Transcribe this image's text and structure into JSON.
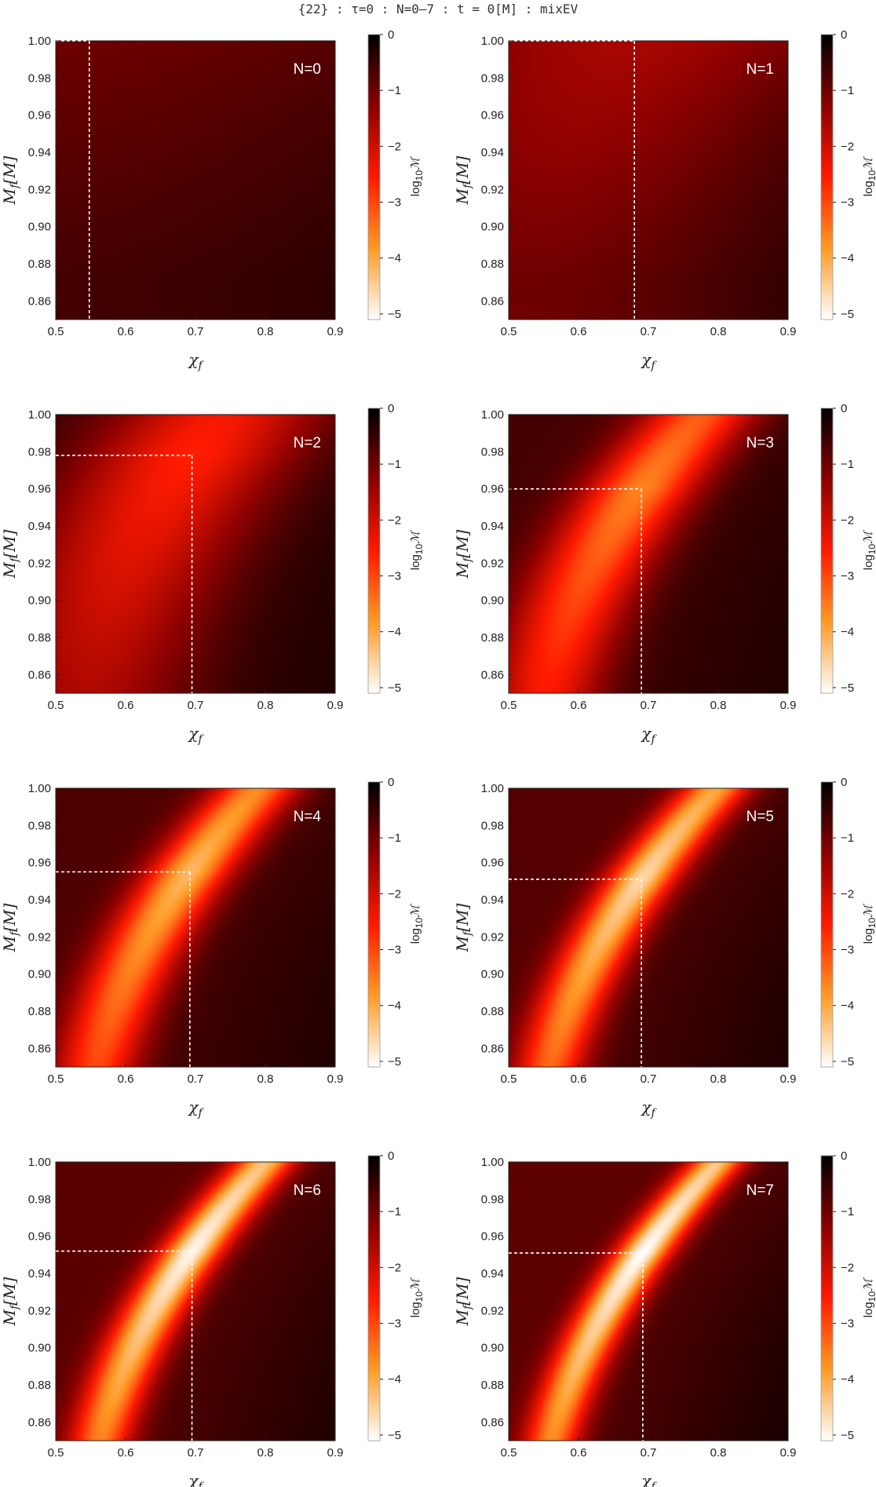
{
  "suptitle": "{22} : τ=0 : N=0–7 : t = 0[M] : mixEV",
  "colors": {
    "colormap": [
      "#ffffff",
      "#ff9a26",
      "#ff1a00",
      "#8a0000",
      "#000000"
    ],
    "guide_line": "#ffffff"
  },
  "chart_data": [
    {
      "type": "heatmap",
      "panel_label": "N=0",
      "xlabel": "χf",
      "ylabel": "Mf[M]",
      "colorbar_label": "log10ℳ",
      "xlim": [
        0.5,
        0.9
      ],
      "ylim": [
        0.85,
        1.0
      ],
      "clim": [
        -5.1,
        0
      ],
      "xticks": [
        "0.5",
        "0.6",
        "0.7",
        "0.8",
        "0.9"
      ],
      "yticks": [
        "0.86",
        "0.88",
        "0.90",
        "0.92",
        "0.94",
        "0.96",
        "0.98",
        "1.00"
      ],
      "cticks": [
        "0",
        "−1",
        "−2",
        "−3",
        "−4",
        "−5"
      ],
      "best_fit": {
        "chi": 0.548,
        "mass": 1.0
      },
      "min_log10": -1.0,
      "valley_width": 0.7
    },
    {
      "type": "heatmap",
      "panel_label": "N=1",
      "xlabel": "χf",
      "ylabel": "Mf[M]",
      "colorbar_label": "log10ℳ",
      "xlim": [
        0.5,
        0.9
      ],
      "ylim": [
        0.85,
        1.0
      ],
      "clim": [
        -5.1,
        0
      ],
      "xticks": [
        "0.5",
        "0.6",
        "0.7",
        "0.8",
        "0.9"
      ],
      "yticks": [
        "0.86",
        "0.88",
        "0.90",
        "0.92",
        "0.94",
        "0.96",
        "0.98",
        "1.00"
      ],
      "cticks": [
        "0",
        "−1",
        "−2",
        "−3",
        "−4",
        "−5"
      ],
      "best_fit": {
        "chi": 0.68,
        "mass": 1.0
      },
      "min_log10": -1.6,
      "valley_width": 0.35
    },
    {
      "type": "heatmap",
      "panel_label": "N=2",
      "xlabel": "χf",
      "ylabel": "Mf[M]",
      "colorbar_label": "log10ℳ",
      "xlim": [
        0.5,
        0.9
      ],
      "ylim": [
        0.85,
        1.0
      ],
      "clim": [
        -5.1,
        0
      ],
      "xticks": [
        "0.5",
        "0.6",
        "0.7",
        "0.8",
        "0.9"
      ],
      "yticks": [
        "0.86",
        "0.88",
        "0.90",
        "0.92",
        "0.94",
        "0.96",
        "0.98",
        "1.00"
      ],
      "cticks": [
        "0",
        "−1",
        "−2",
        "−3",
        "−4",
        "−5"
      ],
      "best_fit": {
        "chi": 0.695,
        "mass": 0.978
      },
      "min_log10": -2.6,
      "valley_width": 0.15
    },
    {
      "type": "heatmap",
      "panel_label": "N=3",
      "xlabel": "χf",
      "ylabel": "Mf[M]",
      "colorbar_label": "log10ℳ",
      "xlim": [
        0.5,
        0.9
      ],
      "ylim": [
        0.85,
        1.0
      ],
      "clim": [
        -5.1,
        0
      ],
      "xticks": [
        "0.5",
        "0.6",
        "0.7",
        "0.8",
        "0.9"
      ],
      "yticks": [
        "0.86",
        "0.88",
        "0.90",
        "0.92",
        "0.94",
        "0.96",
        "0.98",
        "1.00"
      ],
      "cticks": [
        "0",
        "−1",
        "−2",
        "−3",
        "−4",
        "−5"
      ],
      "best_fit": {
        "chi": 0.69,
        "mass": 0.96
      },
      "min_log10": -3.6,
      "valley_width": 0.08
    },
    {
      "type": "heatmap",
      "panel_label": "N=4",
      "xlabel": "χf",
      "ylabel": "Mf[M]",
      "colorbar_label": "log10ℳ",
      "xlim": [
        0.5,
        0.9
      ],
      "ylim": [
        0.85,
        1.0
      ],
      "clim": [
        -5.1,
        0
      ],
      "xticks": [
        "0.5",
        "0.6",
        "0.7",
        "0.8",
        "0.9"
      ],
      "yticks": [
        "0.86",
        "0.88",
        "0.90",
        "0.92",
        "0.94",
        "0.96",
        "0.98",
        "1.00"
      ],
      "cticks": [
        "0",
        "−1",
        "−2",
        "−3",
        "−4",
        "−5"
      ],
      "best_fit": {
        "chi": 0.692,
        "mass": 0.955
      },
      "min_log10": -4.2,
      "valley_width": 0.06
    },
    {
      "type": "heatmap",
      "panel_label": "N=5",
      "xlabel": "χf",
      "ylabel": "Mf[M]",
      "colorbar_label": "log10ℳ",
      "xlim": [
        0.5,
        0.9
      ],
      "ylim": [
        0.85,
        1.0
      ],
      "clim": [
        -5.1,
        0
      ],
      "xticks": [
        "0.5",
        "0.6",
        "0.7",
        "0.8",
        "0.9"
      ],
      "yticks": [
        "0.86",
        "0.88",
        "0.90",
        "0.92",
        "0.94",
        "0.96",
        "0.98",
        "1.00"
      ],
      "cticks": [
        "0",
        "−1",
        "−2",
        "−3",
        "−4",
        "−5"
      ],
      "best_fit": {
        "chi": 0.69,
        "mass": 0.951
      },
      "min_log10": -4.6,
      "valley_width": 0.05
    },
    {
      "type": "heatmap",
      "panel_label": "N=6",
      "xlabel": "χf",
      "ylabel": "Mf[M]",
      "colorbar_label": "log10ℳ",
      "xlim": [
        0.5,
        0.9
      ],
      "ylim": [
        0.85,
        1.0
      ],
      "clim": [
        -5.1,
        0
      ],
      "xticks": [
        "0.5",
        "0.6",
        "0.7",
        "0.8",
        "0.9"
      ],
      "yticks": [
        "0.86",
        "0.88",
        "0.90",
        "0.92",
        "0.94",
        "0.96",
        "0.98",
        "1.00"
      ],
      "cticks": [
        "0",
        "−1",
        "−2",
        "−3",
        "−4",
        "−5"
      ],
      "best_fit": {
        "chi": 0.695,
        "mass": 0.952
      },
      "min_log10": -5.0,
      "valley_width": 0.045
    },
    {
      "type": "heatmap",
      "panel_label": "N=7",
      "xlabel": "χf",
      "ylabel": "Mf[M]",
      "colorbar_label": "log10ℳ",
      "xlim": [
        0.5,
        0.9
      ],
      "ylim": [
        0.85,
        1.0
      ],
      "clim": [
        -5.1,
        0
      ],
      "xticks": [
        "0.5",
        "0.6",
        "0.7",
        "0.8",
        "0.9"
      ],
      "yticks": [
        "0.86",
        "0.88",
        "0.90",
        "0.92",
        "0.94",
        "0.96",
        "0.98",
        "1.00"
      ],
      "cticks": [
        "0",
        "−1",
        "−2",
        "−3",
        "−4",
        "−5"
      ],
      "best_fit": {
        "chi": 0.692,
        "mass": 0.951
      },
      "min_log10": -5.1,
      "valley_width": 0.04
    }
  ]
}
